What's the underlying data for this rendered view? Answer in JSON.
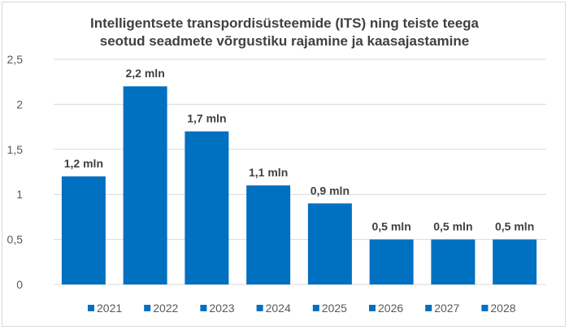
{
  "title_lines": [
    "Intelligentsete transpordisüsteemide (ITS) ning teiste teega",
    "seotud seadmete võrgustiku rajamine ja kaasajastamine"
  ],
  "colors": {
    "bar": "#0070c0",
    "grid": "#d9d9d9",
    "text": "#404040",
    "tick": "#595959"
  },
  "chart_data": {
    "type": "bar",
    "title": "Intelligentsete transpordisüsteemide (ITS) ning teiste teega seotud seadmete võrgustiku rajamine ja kaasajastamine",
    "xlabel": "",
    "ylabel": "",
    "ylim": [
      0,
      2.5
    ],
    "y_ticks": [
      "0",
      "0,5",
      "1",
      "1,5",
      "2",
      "2,5"
    ],
    "y_tick_values": [
      0,
      0.5,
      1,
      1.5,
      2,
      2.5
    ],
    "grid": true,
    "legend_placement": "bottom",
    "categories": [
      "2021",
      "2022",
      "2023",
      "2024",
      "2025",
      "2026",
      "2027",
      "2028"
    ],
    "values": [
      1.2,
      2.2,
      1.7,
      1.1,
      0.9,
      0.5,
      0.5,
      0.5
    ],
    "data_labels": [
      "1,2 mln",
      "2,2 mln",
      "1,7 mln",
      "1,1 mln",
      "0,9 mln",
      "0,5 mln",
      "0,5 mln",
      "0,5 mln"
    ]
  }
}
